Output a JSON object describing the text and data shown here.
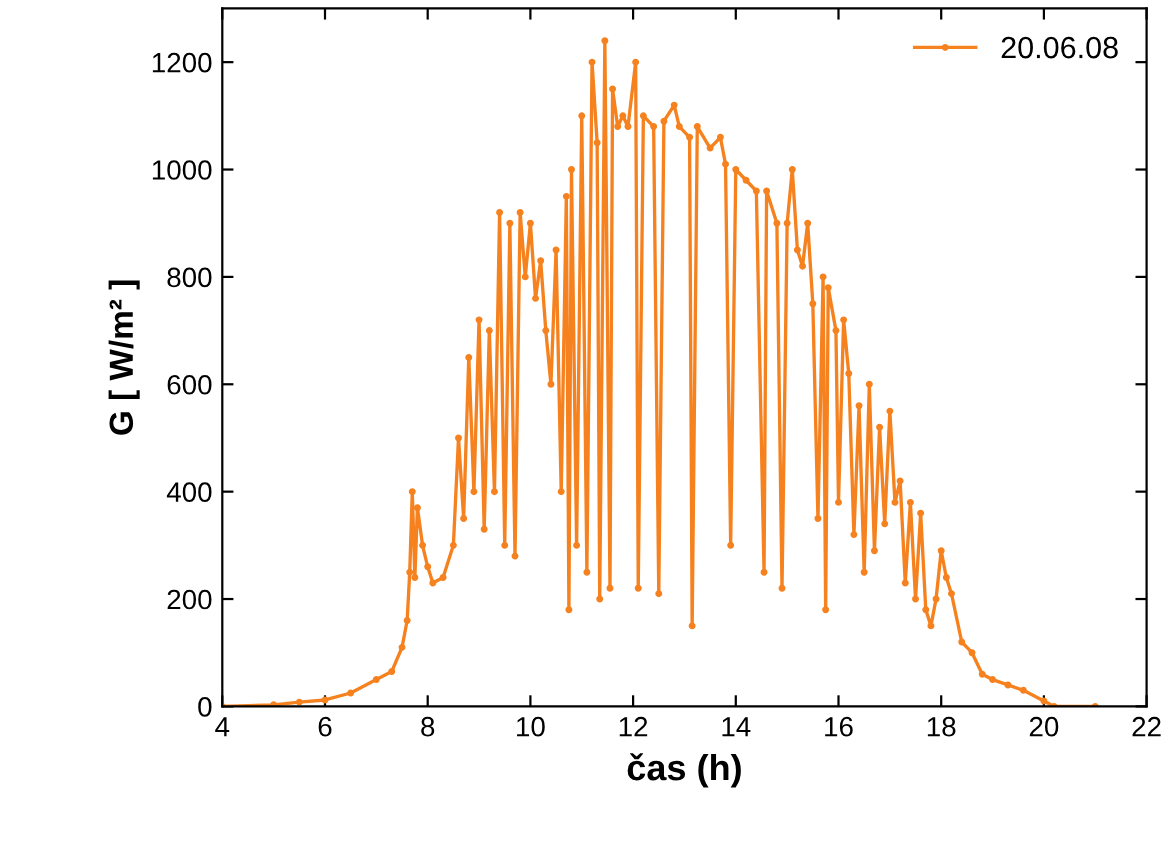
{
  "chart_data": {
    "type": "line",
    "xlabel": "čas (h)",
    "ylabel": "G [ W/m² ]",
    "xlim": [
      4,
      22
    ],
    "xticks": [
      4,
      6,
      8,
      10,
      12,
      14,
      16,
      18,
      20,
      22
    ],
    "ylim": [
      0,
      1300
    ],
    "yticks": [
      0,
      200,
      400,
      600,
      800,
      1000,
      1200
    ],
    "grid": false,
    "legend": "top right",
    "marker": "circle",
    "line_style": "solid",
    "series": [
      {
        "name": "20.06.08",
        "color": "#f5821f",
        "x": [
          4.0,
          5.0,
          5.5,
          6.0,
          6.5,
          7.0,
          7.3,
          7.5,
          7.6,
          7.65,
          7.7,
          7.75,
          7.8,
          7.9,
          8.0,
          8.1,
          8.3,
          8.5,
          8.6,
          8.7,
          8.8,
          8.9,
          9.0,
          9.1,
          9.2,
          9.3,
          9.4,
          9.5,
          9.6,
          9.7,
          9.8,
          9.9,
          10.0,
          10.1,
          10.2,
          10.3,
          10.4,
          10.5,
          10.6,
          10.7,
          10.75,
          10.8,
          10.9,
          11.0,
          11.1,
          11.2,
          11.3,
          11.35,
          11.45,
          11.55,
          11.6,
          11.7,
          11.8,
          11.9,
          12.05,
          12.1,
          12.2,
          12.4,
          12.5,
          12.6,
          12.8,
          12.9,
          13.1,
          13.15,
          13.25,
          13.5,
          13.7,
          13.8,
          13.9,
          14.0,
          14.2,
          14.4,
          14.55,
          14.6,
          14.8,
          14.9,
          15.0,
          15.1,
          15.2,
          15.3,
          15.4,
          15.5,
          15.6,
          15.7,
          15.75,
          15.8,
          15.95,
          16.0,
          16.1,
          16.2,
          16.3,
          16.4,
          16.5,
          16.6,
          16.7,
          16.8,
          16.9,
          17.0,
          17.1,
          17.2,
          17.3,
          17.4,
          17.5,
          17.6,
          17.7,
          17.8,
          17.9,
          18.0,
          18.1,
          18.2,
          18.4,
          18.6,
          18.8,
          19.0,
          19.3,
          19.6,
          20.0,
          20.2,
          21.0
        ],
        "values": [
          0,
          3,
          8,
          12,
          25,
          50,
          65,
          110,
          160,
          250,
          400,
          240,
          370,
          300,
          260,
          230,
          240,
          300,
          500,
          350,
          650,
          400,
          720,
          330,
          700,
          400,
          920,
          300,
          900,
          280,
          920,
          800,
          900,
          760,
          830,
          700,
          600,
          850,
          400,
          950,
          180,
          1000,
          300,
          1100,
          250,
          1200,
          1050,
          200,
          1240,
          220,
          1150,
          1080,
          1100,
          1080,
          1200,
          220,
          1100,
          1080,
          210,
          1090,
          1120,
          1080,
          1060,
          150,
          1080,
          1040,
          1060,
          1010,
          300,
          1000,
          980,
          960,
          250,
          960,
          900,
          220,
          900,
          1000,
          850,
          820,
          900,
          750,
          350,
          800,
          180,
          780,
          700,
          380,
          720,
          620,
          320,
          560,
          250,
          600,
          290,
          520,
          340,
          550,
          380,
          420,
          230,
          380,
          200,
          360,
          180,
          150,
          200,
          290,
          240,
          210,
          120,
          100,
          60,
          50,
          40,
          30,
          10,
          0,
          0
        ]
      }
    ]
  }
}
